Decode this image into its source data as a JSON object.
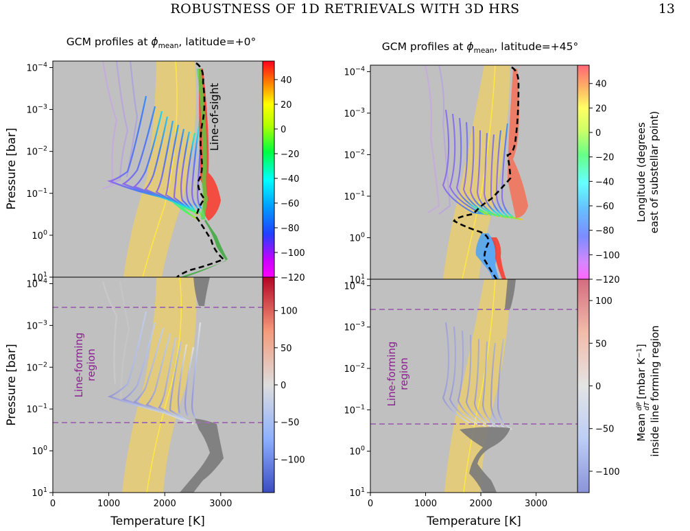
{
  "page": {
    "header": "ROBUSTNESS OF 1D RETRIEVALS WITH 3D HRS",
    "number": "13"
  },
  "labels": {
    "title_left_prefix": "GCM profiles at ",
    "title_right_prefix": "GCM profiles at ",
    "phi": "ϕ",
    "mean": "mean",
    "title_left_suffix": ", latitude=+0°",
    "title_right_suffix": ", latitude=+45°",
    "ylabel": "Pressure [bar]",
    "xlabel": "Temperature [K]",
    "line_of_sight": "Line-of-sight",
    "line_forming_1": "Line-forming",
    "line_forming_2": "region",
    "cbar_top_1": "Longitude (degrees",
    "cbar_top_2": "east of substellar point)",
    "cbar_bot_1": "Mean",
    "cbar_bot_2": "[mbar K",
    "cbar_bot_exp": "−1",
    "cbar_bot_3": "]",
    "cbar_bot_4": "inside line forming region",
    "dP": "dP",
    "dT": "dT"
  },
  "chart_data": [
    {
      "type": "line",
      "panel": "top-left",
      "x_range": [
        0,
        3750
      ],
      "y_range_bar": [
        7e-05,
        10
      ],
      "y_scale": "log",
      "y_inverted": true,
      "x_ticks": [
        0,
        1000,
        2000,
        3000
      ],
      "y_ticks": [
        {
          "v": 0.0001,
          "b": "10",
          "e": "−4"
        },
        {
          "v": 0.001,
          "b": "10",
          "e": "−3"
        },
        {
          "v": 0.01,
          "b": "10",
          "e": "−2"
        },
        {
          "v": 0.1,
          "b": "10",
          "e": "−1"
        },
        {
          "v": 1,
          "b": "10",
          "e": "0"
        },
        {
          "v": 10,
          "b": "10",
          "e": "1"
        }
      ],
      "colorbar": {
        "range": [
          -120,
          55
        ],
        "ticks": [
          40,
          20,
          0,
          -20,
          -40,
          -60,
          -80,
          -100,
          -120
        ],
        "cmap": "gist_rainbow"
      },
      "line_of_sight": [
        {
          "T": 2620,
          "P": 7e-05
        },
        {
          "T": 2740,
          "P": 0.0001
        },
        {
          "T": 2760,
          "P": 0.001
        },
        {
          "T": 2730,
          "P": 0.01
        },
        {
          "T": 2680,
          "P": 0.05
        },
        {
          "T": 2720,
          "P": 0.1
        },
        {
          "T": 2560,
          "P": 0.3
        },
        {
          "T": 2800,
          "P": 0.6
        },
        {
          "T": 3000,
          "P": 2
        },
        {
          "T": 3100,
          "P": 3
        },
        {
          "T": 2700,
          "P": 6
        },
        {
          "T": 2300,
          "P": 10
        }
      ]
    },
    {
      "type": "line",
      "panel": "top-right",
      "x_range": [
        0,
        3750
      ],
      "y_range_bar": [
        7e-05,
        10
      ],
      "y_scale": "log",
      "y_inverted": true,
      "x_ticks": [
        0,
        1000,
        2000,
        3000
      ],
      "y_ticks": [
        {
          "v": 0.0001,
          "b": "10",
          "e": "−4"
        },
        {
          "v": 0.001,
          "b": "10",
          "e": "−3"
        },
        {
          "v": 0.01,
          "b": "10",
          "e": "−2"
        },
        {
          "v": 0.1,
          "b": "10",
          "e": "−1"
        },
        {
          "v": 1,
          "b": "10",
          "e": "0"
        },
        {
          "v": 10,
          "b": "10",
          "e": "1"
        }
      ],
      "colorbar": {
        "range": [
          -120,
          55
        ],
        "ticks": [
          40,
          20,
          0,
          -20,
          -40,
          -60,
          -80,
          -100,
          -120
        ],
        "cmap": "gist_rainbow"
      },
      "line_of_sight": [
        {
          "T": 2580,
          "P": 7e-05
        },
        {
          "T": 2700,
          "P": 0.0002
        },
        {
          "T": 2680,
          "P": 0.002
        },
        {
          "T": 2520,
          "P": 0.01
        },
        {
          "T": 2600,
          "P": 0.04
        },
        {
          "T": 2200,
          "P": 0.12
        },
        {
          "T": 1600,
          "P": 0.2
        },
        {
          "T": 2000,
          "P": 0.5
        },
        {
          "T": 2180,
          "P": 1
        },
        {
          "T": 2060,
          "P": 2
        },
        {
          "T": 2150,
          "P": 5
        },
        {
          "T": 2250,
          "P": 10
        }
      ]
    },
    {
      "type": "line",
      "panel": "bottom-left",
      "x_range": [
        0,
        3750
      ],
      "y_range_bar": [
        7e-05,
        10
      ],
      "y_scale": "log",
      "y_inverted": true,
      "x_ticks": [
        0,
        1000,
        2000,
        3000
      ],
      "y_ticks": [
        {
          "v": 0.0001,
          "b": "10",
          "e": "−4"
        },
        {
          "v": 0.001,
          "b": "10",
          "e": "−3"
        },
        {
          "v": 0.01,
          "b": "10",
          "e": "−2"
        },
        {
          "v": 0.1,
          "b": "10",
          "e": "−1"
        },
        {
          "v": 1,
          "b": "10",
          "e": "0"
        },
        {
          "v": 10,
          "b": "10",
          "e": "1"
        }
      ],
      "colorbar": {
        "range": [
          -145,
          145
        ],
        "ticks": [
          100,
          50,
          0,
          -50,
          -100
        ],
        "cmap": "coolwarm"
      },
      "line_forming_bounds_bar": [
        0.00012,
        0.08
      ]
    },
    {
      "type": "line",
      "panel": "bottom-right",
      "x_range": [
        0,
        3750
      ],
      "y_range_bar": [
        7e-05,
        10
      ],
      "y_scale": "log",
      "y_inverted": true,
      "x_ticks": [
        0,
        1000,
        2000,
        3000
      ],
      "y_ticks": [
        {
          "v": 0.0001,
          "b": "10",
          "e": "−4"
        },
        {
          "v": 0.001,
          "b": "10",
          "e": "−3"
        },
        {
          "v": 0.01,
          "b": "10",
          "e": "−2"
        },
        {
          "v": 0.1,
          "b": "10",
          "e": "−1"
        },
        {
          "v": 1,
          "b": "10",
          "e": "0"
        },
        {
          "v": 10,
          "b": "10",
          "e": "1"
        }
      ],
      "colorbar": {
        "range": [
          -125,
          125
        ],
        "ticks": [
          100,
          50,
          0,
          -50,
          -100
        ],
        "cmap": "coolwarm"
      },
      "line_forming_bounds_bar": [
        0.00012,
        0.08
      ]
    }
  ]
}
